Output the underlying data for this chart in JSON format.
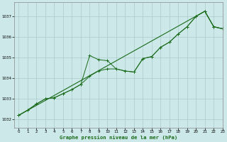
{
  "title": "Graphe pression niveau de la mer (hPa)",
  "bg_color": "#cce8e8",
  "grid_color": "#aacccc",
  "line_color": "#1a6b1a",
  "xlim": [
    -0.5,
    23
  ],
  "ylim": [
    1031.6,
    1037.7
  ],
  "yticks": [
    1032,
    1033,
    1034,
    1035,
    1036,
    1037
  ],
  "xticks": [
    0,
    1,
    2,
    3,
    4,
    5,
    6,
    7,
    8,
    9,
    10,
    11,
    12,
    13,
    14,
    15,
    16,
    17,
    18,
    19,
    20,
    21,
    22,
    23
  ],
  "series1_x": [
    0,
    1,
    2,
    3,
    4,
    5,
    6,
    7,
    8,
    9,
    10,
    11,
    12,
    13,
    14,
    15,
    16,
    17,
    18,
    19,
    20,
    21,
    22,
    23
  ],
  "series1_y": [
    1032.2,
    1032.45,
    1032.75,
    1033.0,
    1033.05,
    1033.25,
    1033.45,
    1033.7,
    1035.1,
    1034.9,
    1034.85,
    1034.45,
    1034.35,
    1034.3,
    1034.95,
    1035.05,
    1035.5,
    1035.75,
    1036.15,
    1036.5,
    1037.0,
    1037.25,
    1036.5,
    1036.4
  ],
  "series2_x": [
    0,
    1,
    2,
    3,
    4,
    5,
    6,
    7,
    8,
    9,
    10,
    11,
    12,
    13,
    14,
    15,
    16,
    17,
    18,
    19,
    20,
    21,
    22,
    23
  ],
  "series2_y": [
    1032.2,
    1032.45,
    1032.75,
    1033.0,
    1033.05,
    1033.25,
    1033.45,
    1033.7,
    1034.1,
    1034.35,
    1034.45,
    1034.45,
    1034.35,
    1034.3,
    1034.95,
    1035.05,
    1035.5,
    1035.75,
    1036.15,
    1036.5,
    1037.0,
    1037.25,
    1036.5,
    1036.4
  ],
  "series3_x": [
    0,
    21,
    22,
    23
  ],
  "series3_y": [
    1032.2,
    1037.25,
    1036.5,
    1036.4
  ]
}
